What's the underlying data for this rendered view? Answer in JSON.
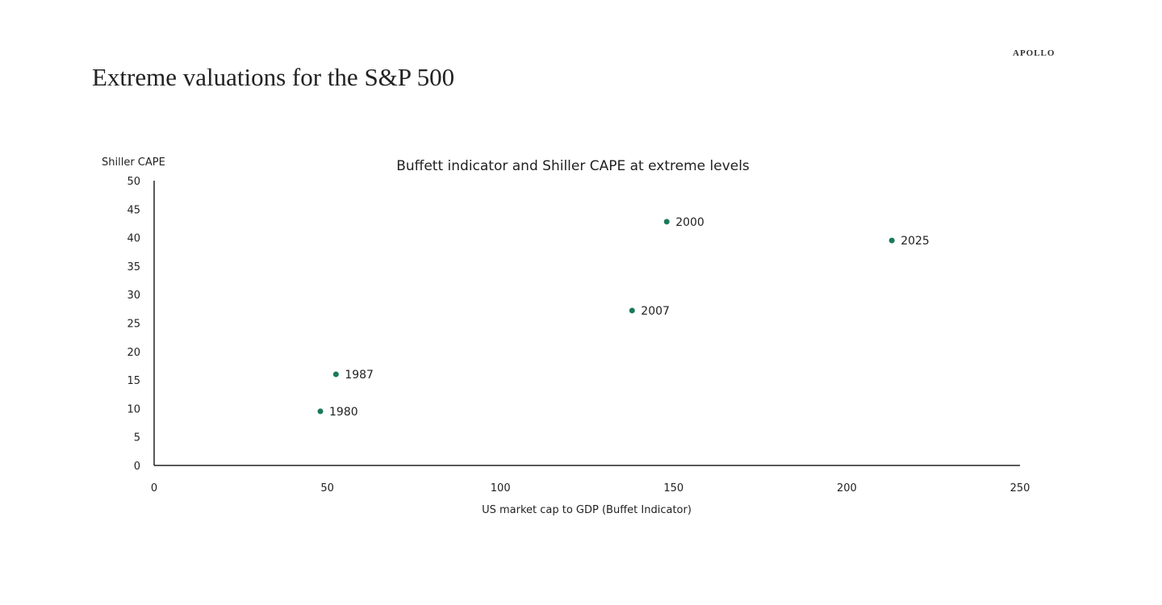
{
  "slide": {
    "title": "Extreme valuations for the S&P 500",
    "brand": "APOLLO"
  },
  "chart_data": {
    "type": "scatter",
    "title": "Buffett indicator and Shiller CAPE at extreme levels",
    "xlabel": "US market cap to GDP (Buffet Indicator)",
    "ylabel": "Shiller CAPE",
    "xlim": [
      0,
      250
    ],
    "ylim": [
      0,
      50
    ],
    "x_ticks": [
      0,
      50,
      100,
      150,
      200,
      250
    ],
    "y_ticks": [
      0,
      5,
      10,
      15,
      20,
      25,
      30,
      35,
      40,
      45,
      50
    ],
    "grid": false,
    "legend": "none",
    "point_color": "#1a7a5a",
    "points": [
      {
        "label": "1980",
        "x": 48,
        "y": 9.5
      },
      {
        "label": "1987",
        "x": 52.5,
        "y": 16
      },
      {
        "label": "2007",
        "x": 138,
        "y": 27.2
      },
      {
        "label": "2000",
        "x": 148,
        "y": 42.8
      },
      {
        "label": "2025",
        "x": 213,
        "y": 39.5
      }
    ]
  }
}
